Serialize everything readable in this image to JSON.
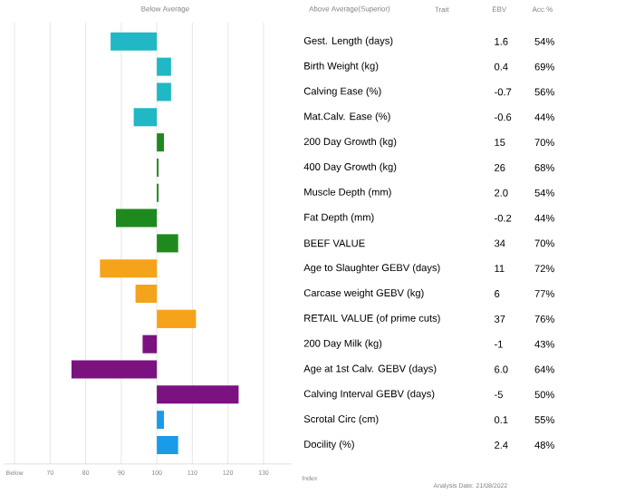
{
  "chart_data": {
    "type": "bar",
    "orientation": "horizontal",
    "categories": [
      "Gest. Length (days)",
      "Birth Weight (kg)",
      "Calving Ease (%)",
      "Mat.Calv. Ease (%)",
      "200 Day Growth (kg)",
      "400 Day Growth (kg)",
      "Muscle Depth (mm)",
      "Fat Depth (mm)",
      "BEEF VALUE",
      "Age to Slaughter GEBV (days)",
      "Carcase weight GEBV (kg)",
      "RETAIL VALUE (of prime cuts)",
      "200 Day Milk (kg)",
      "Age at 1st Calv. GEBV (days)",
      "Calving Interval GEBV (days)",
      "Scrotal Circ (cm)",
      "Docility (%)"
    ],
    "base": [
      100,
      100,
      100,
      100,
      100,
      100,
      100,
      100,
      100,
      100,
      100,
      100,
      100,
      100,
      100,
      100,
      100
    ],
    "values": [
      -13,
      4,
      4,
      -6.5,
      2,
      0.5,
      0.5,
      -11.5,
      6,
      -16,
      -6,
      11,
      -4,
      -24,
      23,
      2,
      6
    ],
    "colors": [
      "#1fb8c4",
      "#1fb8c4",
      "#1fb8c4",
      "#1fb8c4",
      "#1e8a1e",
      "#1e8a1e",
      "#1e8a1e",
      "#1e8a1e",
      "#1e8a1e",
      "#f5a31a",
      "#f5a31a",
      "#f5a31a",
      "#7b1280",
      "#7b1280",
      "#7b1280",
      "#1a9be8",
      "#1a9be8"
    ],
    "xlabel": "Index",
    "xlim": [
      57,
      138
    ],
    "xticks": [
      {
        "value": 60,
        "label": "Below"
      },
      70,
      80,
      90,
      100,
      110,
      120,
      130
    ],
    "grid": "x",
    "annotations": [
      "Below Average",
      "Above Average(Superior)",
      "Trait",
      "EBV",
      "Acc %",
      "Analysis Date: 21/08/2022",
      "1.6",
      "0.4",
      "-0.7",
      "-0.6",
      "15",
      "26",
      "2.0",
      "-0.2",
      "34",
      "11",
      "6",
      "37",
      "-1",
      "6.0",
      "-5",
      "0.1",
      "2.4",
      "54%",
      "69%",
      "56%",
      "44%",
      "70%",
      "68%",
      "54%",
      "44%",
      "70%",
      "72%",
      "77%",
      "76%",
      "43%",
      "64%",
      "50%",
      "55%",
      "48%"
    ]
  }
}
